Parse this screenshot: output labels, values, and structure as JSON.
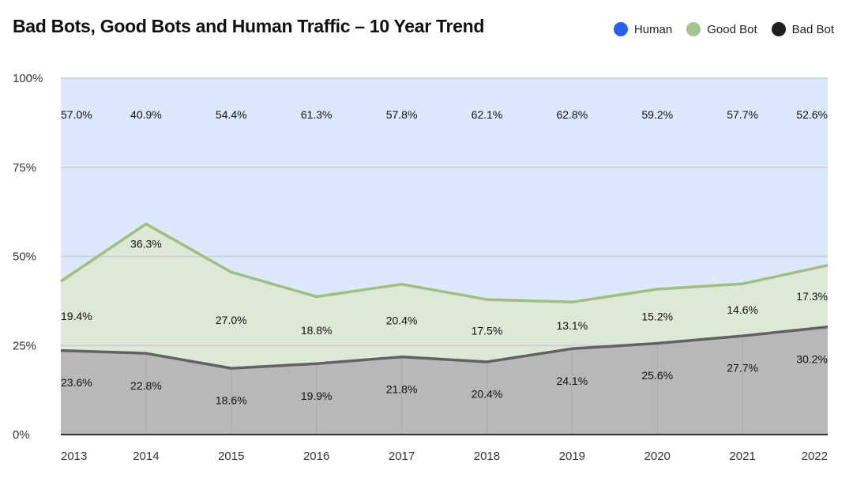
{
  "header": {
    "title": "Bad Bots, Good Bots and Human Traffic – 10 Year Trend"
  },
  "legend": [
    {
      "label": "Human",
      "color": "#2563eb"
    },
    {
      "label": "Good Bot",
      "color": "#a3c48a"
    },
    {
      "label": "Bad Bot",
      "color": "#1f1f1f"
    }
  ],
  "chart_data": {
    "type": "area",
    "stacked": true,
    "title": "Bad Bots, Good Bots and Human Traffic – 10 Year Trend",
    "categories": [
      "2013",
      "2014",
      "2015",
      "2016",
      "2017",
      "2018",
      "2019",
      "2020",
      "2021",
      "2022"
    ],
    "series": [
      {
        "name": "Bad Bot",
        "values": [
          23.6,
          22.8,
          18.6,
          19.9,
          21.8,
          20.4,
          24.1,
          25.6,
          27.7,
          30.2
        ],
        "labels": [
          "23.6%",
          "22.8%",
          "18.6%",
          "19.9%",
          "21.8%",
          "20.4%",
          "24.1%",
          "25.6%",
          "27.7%",
          "30.2%"
        ],
        "fill": "#b8b8b9",
        "line": "#626262"
      },
      {
        "name": "Good Bot",
        "values": [
          19.4,
          36.3,
          27.0,
          18.8,
          20.4,
          17.5,
          13.1,
          15.2,
          14.6,
          17.3
        ],
        "labels": [
          "19.4%",
          "36.3%",
          "27.0%",
          "18.8%",
          "20.4%",
          "17.5%",
          "13.1%",
          "15.2%",
          "14.6%",
          "17.3%"
        ],
        "fill": "#dde8d5",
        "line": "#9dbf83"
      },
      {
        "name": "Human",
        "values": [
          57.0,
          40.9,
          54.4,
          61.3,
          57.8,
          62.1,
          62.8,
          59.2,
          57.7,
          52.6
        ],
        "labels": [
          "57.0%",
          "40.9%",
          "54.4%",
          "61.3%",
          "57.8%",
          "62.1%",
          "62.8%",
          "59.2%",
          "57.7%",
          "52.6%"
        ],
        "fill": "#dce8fb",
        "line": "#dce8fb"
      }
    ],
    "y_ticks": [
      "0%",
      "25%",
      "50%",
      "75%",
      "100%"
    ],
    "ylim": [
      0,
      100
    ],
    "xlabel": "",
    "ylabel": "",
    "grid": true,
    "legend_position": "top-right"
  }
}
